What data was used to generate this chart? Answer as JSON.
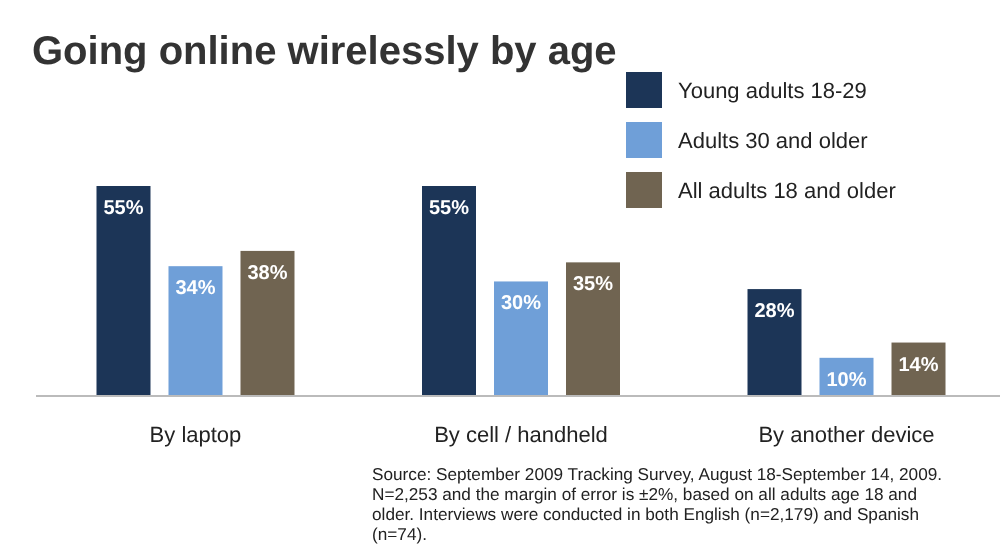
{
  "chart_data": {
    "type": "bar",
    "title": "Going online wirelessly by age",
    "categories": [
      "By laptop",
      "By cell / handheld",
      "By another device"
    ],
    "series": [
      {
        "name": "Young adults 18-29",
        "color": "#1c3557",
        "values": [
          55,
          55,
          28
        ],
        "value_labels": [
          "55%",
          "55%",
          "28%"
        ]
      },
      {
        "name": "Adults 30 and older",
        "color": "#6f9fd8",
        "values": [
          34,
          30,
          10
        ],
        "value_labels": [
          "34%",
          "30%",
          "10%"
        ]
      },
      {
        "name": "All adults 18 and older",
        "color": "#706451",
        "values": [
          38,
          35,
          14
        ],
        "value_labels": [
          "38%",
          "35%",
          "14%"
        ]
      }
    ],
    "legend": "top right",
    "annotations": [
      "Source: September 2009 Tracking Survey, August 18-September 14, 2009. N=2,253 and the margin of error is ±2%, based on all adults age 18 and older. Interviews were conducted in both English (n=2,179) and Spanish (n=74)."
    ]
  }
}
